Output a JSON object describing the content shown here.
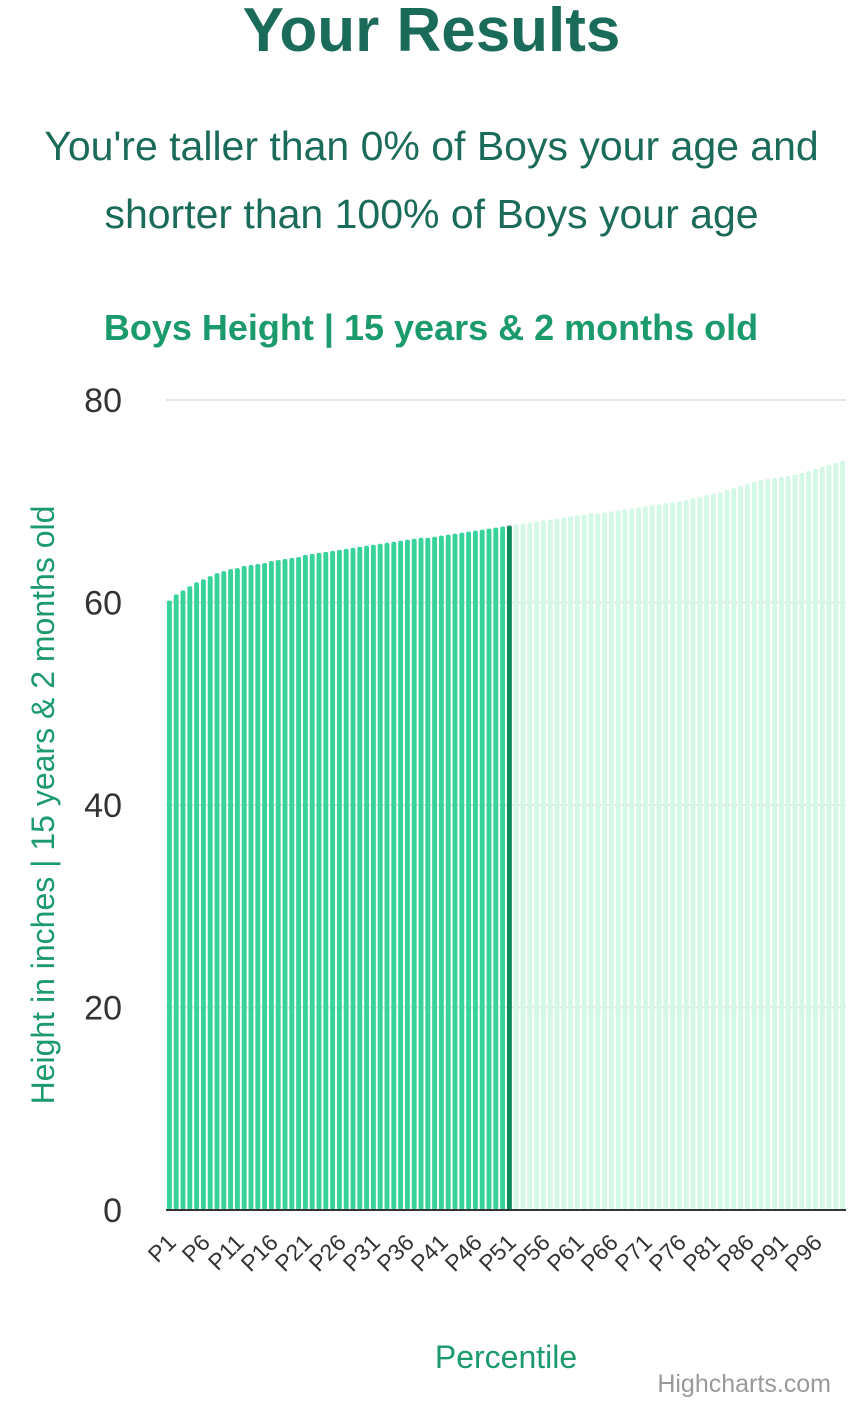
{
  "page": {
    "title": "Your Results",
    "subtitle_line1": "You're taller than 0% of Boys your age and",
    "subtitle_line2": "shorter than 100% of Boys your age"
  },
  "chart_data": {
    "type": "bar",
    "title": "Boys Height | 15 years & 2 months old",
    "xlabel": "Percentile",
    "ylabel": "Height in inches | 15 years & 2 months old",
    "ylim": [
      0,
      80
    ],
    "yticks": [
      0,
      20,
      40,
      60,
      80
    ],
    "grid": true,
    "highlight_until_category": "P50",
    "marker_category": "P51",
    "categories": [
      "P1",
      "P2",
      "P3",
      "P4",
      "P5",
      "P6",
      "P7",
      "P8",
      "P9",
      "P10",
      "P11",
      "P12",
      "P13",
      "P14",
      "P15",
      "P16",
      "P17",
      "P18",
      "P19",
      "P20",
      "P21",
      "P22",
      "P23",
      "P24",
      "P25",
      "P26",
      "P27",
      "P28",
      "P29",
      "P30",
      "P31",
      "P32",
      "P33",
      "P34",
      "P35",
      "P36",
      "P37",
      "P38",
      "P39",
      "P40",
      "P41",
      "P42",
      "P43",
      "P44",
      "P45",
      "P46",
      "P47",
      "P48",
      "P49",
      "P50",
      "P51",
      "P52",
      "P53",
      "P54",
      "P55",
      "P56",
      "P57",
      "P58",
      "P59",
      "P60",
      "P61",
      "P62",
      "P63",
      "P64",
      "P65",
      "P66",
      "P67",
      "P68",
      "P69",
      "P70",
      "P71",
      "P72",
      "P73",
      "P74",
      "P75",
      "P76",
      "P77",
      "P78",
      "P79",
      "P80",
      "P81",
      "P82",
      "P83",
      "P84",
      "P85",
      "P86",
      "P87",
      "P88",
      "P89",
      "P90",
      "P91",
      "P92",
      "P93",
      "P94",
      "P95",
      "P96",
      "P97",
      "P98",
      "P99",
      "P100"
    ],
    "values": [
      60.2,
      60.8,
      61.2,
      61.6,
      62.0,
      62.3,
      62.6,
      62.9,
      63.1,
      63.3,
      63.4,
      63.6,
      63.7,
      63.8,
      63.9,
      64.1,
      64.2,
      64.3,
      64.4,
      64.5,
      64.7,
      64.8,
      64.9,
      65.0,
      65.1,
      65.2,
      65.3,
      65.4,
      65.5,
      65.6,
      65.7,
      65.8,
      65.9,
      66.0,
      66.1,
      66.2,
      66.3,
      66.4,
      66.4,
      66.5,
      66.6,
      66.7,
      66.8,
      66.9,
      67.0,
      67.1,
      67.2,
      67.3,
      67.4,
      67.5,
      67.6,
      67.7,
      67.8,
      67.9,
      68.0,
      68.1,
      68.2,
      68.3,
      68.4,
      68.5,
      68.6,
      68.7,
      68.8,
      68.8,
      68.9,
      69.0,
      69.1,
      69.2,
      69.3,
      69.4,
      69.5,
      69.6,
      69.7,
      69.8,
      69.9,
      70.0,
      70.1,
      70.3,
      70.4,
      70.6,
      70.8,
      70.9,
      71.1,
      71.3,
      71.5,
      71.7,
      71.9,
      72.1,
      72.2,
      72.3,
      72.4,
      72.5,
      72.6,
      72.8,
      73.0,
      73.2,
      73.4,
      73.6,
      73.8,
      74.0
    ],
    "xtick_labels": [
      "P1",
      "P6",
      "P11",
      "P16",
      "P21",
      "P26",
      "P31",
      "P36",
      "P41",
      "P46",
      "P51",
      "P56",
      "P61",
      "P66",
      "P71",
      "P76",
      "P81",
      "P86",
      "P91",
      "P96"
    ],
    "colors": {
      "highlight": "#38d39a",
      "normal": "#d3f8e5",
      "marker": "#0f8a5c",
      "grid": "#e6e6e6",
      "axis": "#333333"
    },
    "credits": "Highcharts.com"
  }
}
